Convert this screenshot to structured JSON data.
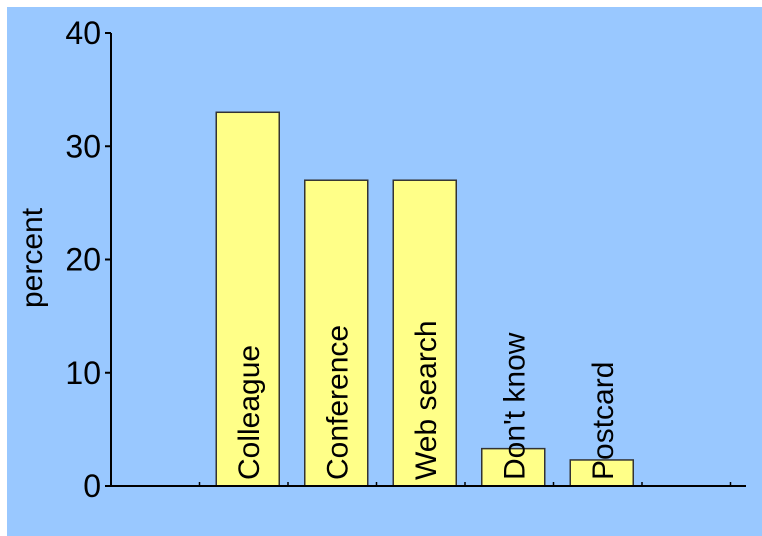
{
  "colors": {
    "background": "#99c8ff",
    "bar_fill": "#ffff88",
    "bar_stroke": "#333333",
    "axis": "#000000"
  },
  "chart_data": {
    "type": "bar",
    "ylabel": "percent",
    "xlabel": "",
    "ylim": [
      0,
      40
    ],
    "yticks": [
      0,
      10,
      20,
      30,
      40
    ],
    "grid": false,
    "categories": [
      "",
      "Colleague",
      "Conference",
      "Web search",
      "Don't know",
      "Postcard",
      ""
    ],
    "values": [
      null,
      33,
      27,
      27,
      3.3,
      2.3,
      null
    ]
  }
}
